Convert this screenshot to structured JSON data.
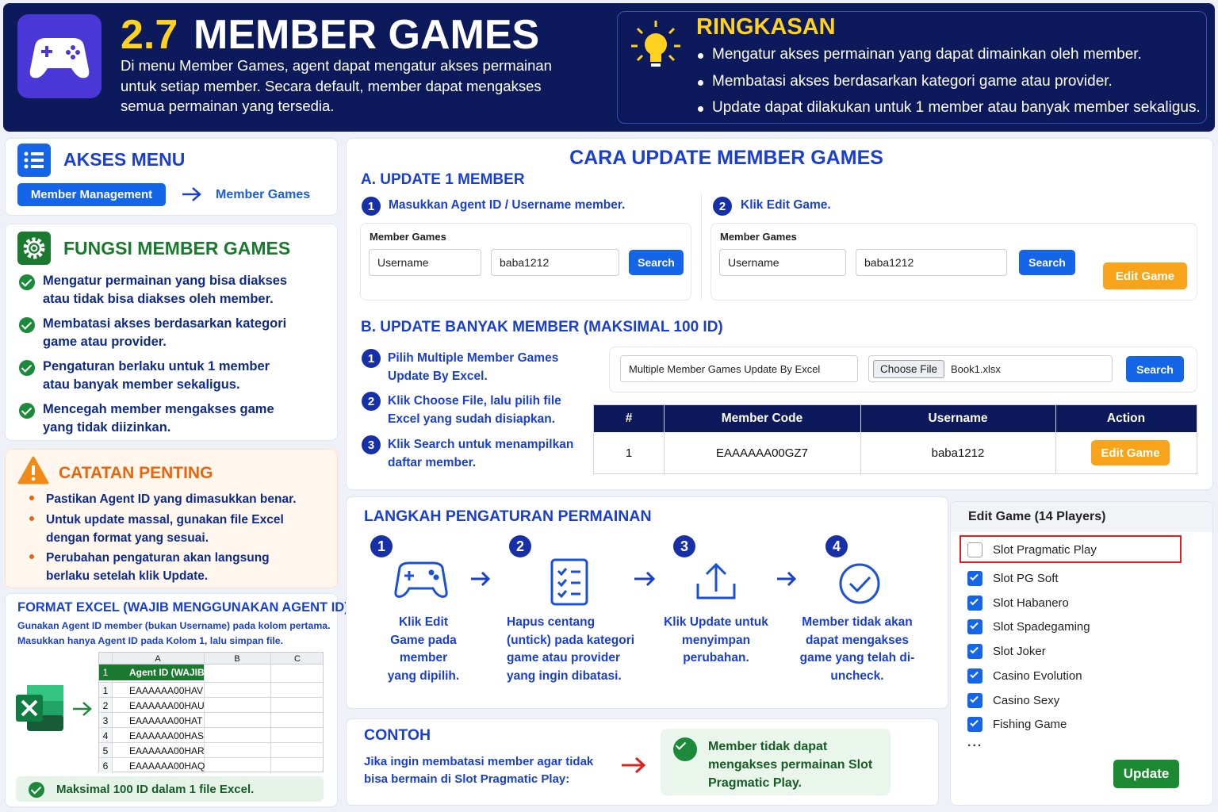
{
  "header": {
    "number": "2.7",
    "title": "MEMBER GAMES",
    "description": "Di menu Member Games, agent dapat mengatur akses permainan untuk setiap member. Secara default, member dapat mengakses semua permainan yang tersedia."
  },
  "summary": {
    "title": "RINGKASAN",
    "items": [
      "Mengatur akses permainan yang dapat dimainkan oleh member.",
      "Membatasi akses berdasarkan kategori game atau provider.",
      "Update dapat dilakukan untuk 1 member atau banyak member sekaligus."
    ]
  },
  "akses_menu": {
    "title": "AKSES MENU",
    "button": "Member Management",
    "target": "Member Games"
  },
  "fungsi": {
    "title": "FUNGSI MEMBER GAMES",
    "items": [
      "Mengatur permainan yang bisa diakses atau tidak bisa diakses oleh member.",
      "Membatasi akses berdasarkan kategori game atau provider.",
      "Pengaturan berlaku untuk 1 member atau banyak member sekaligus.",
      "Mencegah member mengakses game yang tidak diizinkan."
    ]
  },
  "catatan": {
    "title": "CATATAN PENTING",
    "items": [
      "Pastikan Agent ID yang dimasukkan benar.",
      "Untuk update massal, gunakan file Excel dengan format yang sesuai.",
      "Perubahan pengaturan akan langsung berlaku setelah klik Update."
    ]
  },
  "format_excel": {
    "title": "FORMAT EXCEL (WAJIB MENGGUNAKAN AGENT ID)",
    "note": "Gunakan Agent ID member (bukan Username) pada kolom pertama. Masukkan hanya Agent ID pada Kolom 1, lalu simpan file.",
    "columns": [
      "A",
      "B",
      "C"
    ],
    "header_row": {
      "num": 1,
      "cell": "Agent ID (WAJIB)"
    },
    "rows": [
      {
        "num": 1,
        "cell": "EAAAAAA00HAV"
      },
      {
        "num": 2,
        "cell": "EAAAAAA00HAU"
      },
      {
        "num": 3,
        "cell": "EAAAAAA00HAT"
      },
      {
        "num": 4,
        "cell": "EAAAAAA00HAS"
      },
      {
        "num": 5,
        "cell": "EAAAAAA00HAR"
      },
      {
        "num": 6,
        "cell": "EAAAAAA00HAQ"
      }
    ],
    "footer": "Maksimal 100 ID dalam 1 file Excel."
  },
  "cara": {
    "title": "CARA UPDATE MEMBER GAMES",
    "section_a": {
      "title": "A. UPDATE 1 MEMBER",
      "steps": [
        {
          "num": 1,
          "text": "Masukkan Agent ID / Username member."
        },
        {
          "num": 2,
          "text": "Klik Edit Game."
        }
      ],
      "form_label": "Member Games",
      "select": "Username",
      "input": "baba1212",
      "search": "Search",
      "edit_button": "Edit Game"
    },
    "section_b": {
      "title": "B. UPDATE BANYAK MEMBER (MAKSIMAL 100 ID)",
      "steps": [
        {
          "num": 1,
          "text": "Pilih Multiple Member Games Update By Excel."
        },
        {
          "num": 2,
          "text": "Klik Choose File, lalu pilih file Excel yang sudah disiapkan."
        },
        {
          "num": 3,
          "text": "Klik Search untuk menampilkan daftar member."
        }
      ],
      "select": "Multiple Member Games Update By Excel",
      "choose_file": "Choose File",
      "file_name": "Book1.xlsx",
      "search": "Search",
      "table": {
        "headers": [
          "#",
          "Member Code",
          "Username",
          "Action"
        ],
        "row": {
          "num": 1,
          "member_code": "EAAAAAA00GZ7",
          "username": "baba1212",
          "action": "Edit Game"
        }
      }
    }
  },
  "langkah": {
    "title": "LANGKAH PENGATURAN PERMAINAN",
    "steps": [
      {
        "num": 1,
        "text": "Klik Edit Game pada member yang dipilih."
      },
      {
        "num": 2,
        "text": "Hapus centang (untick) pada kategori game atau provider yang ingin dibatasi."
      },
      {
        "num": 3,
        "text": "Klik Update untuk menyimpan perubahan."
      },
      {
        "num": 4,
        "text": "Member tidak akan dapat mengakses game yang telah di-uncheck."
      }
    ]
  },
  "contoh": {
    "title": "CONTOH",
    "text": "Jika ingin membatasi member agar tidak bisa bermain di Slot Pragmatic Play:",
    "result": "Member tidak dapat mengakses permainan Slot Pragmatic Play."
  },
  "edit_game": {
    "title": "Edit Game (14 Players)",
    "items": [
      {
        "name": "Slot Pragmatic Play",
        "checked": false
      },
      {
        "name": "Slot PG Soft",
        "checked": true
      },
      {
        "name": "Slot Habanero",
        "checked": true
      },
      {
        "name": "Slot Spadegaming",
        "checked": true
      },
      {
        "name": "Slot Joker",
        "checked": true
      },
      {
        "name": "Casino Evolution",
        "checked": true
      },
      {
        "name": "Casino Sexy",
        "checked": true
      },
      {
        "name": "Fishing Game",
        "checked": true
      }
    ],
    "more": "...",
    "button": "Update"
  }
}
